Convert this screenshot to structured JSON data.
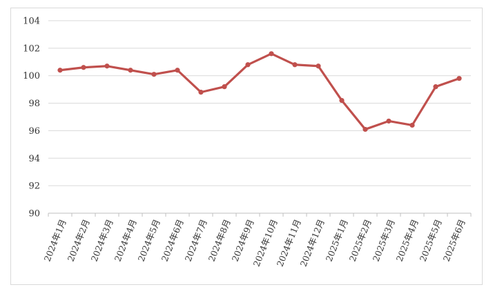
{
  "chart_data": {
    "type": "line",
    "title": "",
    "xlabel": "",
    "ylabel": "",
    "categories": [
      "2024年1月",
      "2024年2月",
      "2024年3月",
      "2024年4月",
      "2024年5月",
      "2024年6月",
      "2024年7月",
      "2024年8月",
      "2024年9月",
      "2024年10月",
      "2024年11月",
      "2024年12月",
      "2025年1月",
      "2025年2月",
      "2025年3月",
      "2025年4月",
      "2025年5月",
      "2025年6月"
    ],
    "series": [
      {
        "values": [
          100.4,
          100.6,
          100.7,
          100.4,
          100.1,
          100.4,
          98.8,
          99.2,
          100.8,
          101.6,
          100.8,
          100.7,
          98.2,
          96.1,
          96.7,
          96.4,
          99.2,
          99.8
        ]
      }
    ],
    "ylim": [
      90,
      104
    ],
    "yticks": [
      90,
      92,
      94,
      96,
      98,
      100,
      102,
      104
    ],
    "grid": true,
    "legend": "none",
    "colors": {
      "line": "#c0504d",
      "grid": "#d9d9d9",
      "axis": "#bfbfbf"
    }
  }
}
